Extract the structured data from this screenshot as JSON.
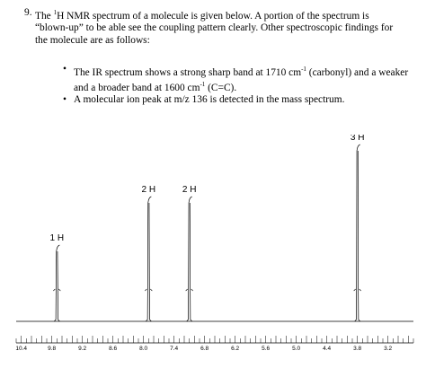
{
  "question": {
    "number": "9.",
    "line1_prefix": "The ",
    "superscript": "1",
    "line1_rest": "H NMR spectrum of a molecule is given below. A portion of the spectrum is",
    "line2": "“blown-up” to be able see the coupling pattern clearly. Other spectroscopic findings for",
    "line3": "the molecule are as follows:"
  },
  "bullets": [
    {
      "part1": "The IR spectrum shows a strong sharp band at 1710 cm",
      "sup1": "-1",
      "part2": " (carbonyl) and a weaker",
      "part3": "and a broader band at 1600 cm",
      "sup2": "-1",
      "part4": " (C=C)."
    },
    {
      "part1": "A molecular ion peak at m/z 136 is detected in the mass spectrum."
    }
  ],
  "chart_data": {
    "type": "line",
    "x_axis_reversed": true,
    "xlim": [
      10.5,
      2.7
    ],
    "tick_labels": [
      "10.4",
      "9.8",
      "9.2",
      "8.6",
      "8.0",
      "7.4",
      "6.8",
      "6.2",
      "5.6",
      "5.0",
      "4.4",
      "3.8",
      "3.2"
    ],
    "tick_values": [
      10.4,
      9.8,
      9.2,
      8.6,
      8.0,
      7.4,
      6.8,
      6.2,
      5.6,
      5.0,
      4.4,
      3.8,
      3.2
    ],
    "peaks": [
      {
        "shift": 9.7,
        "integration_label": "1 H",
        "relative_height": 0.42
      },
      {
        "shift": 7.9,
        "integration_label": "2 H",
        "relative_height": 0.69
      },
      {
        "shift": 7.1,
        "integration_label": "2 H",
        "relative_height": 0.69
      },
      {
        "shift": 3.8,
        "integration_label": "3 H",
        "relative_height": 0.98
      }
    ]
  }
}
